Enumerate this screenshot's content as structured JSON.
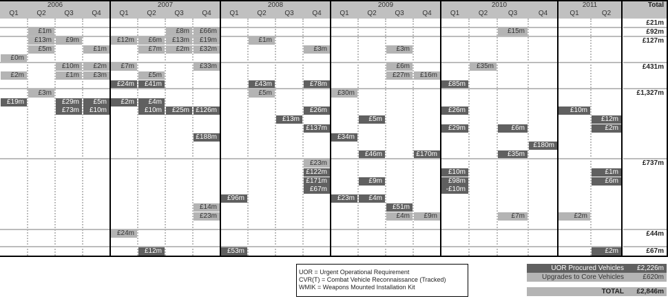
{
  "chart_data": {
    "type": "table",
    "total_header": "Total",
    "years": [
      {
        "year": "2006",
        "quarters": [
          "Q1",
          "Q2",
          "Q3",
          "Q4"
        ]
      },
      {
        "year": "2007",
        "quarters": [
          "Q1",
          "Q2",
          "Q3",
          "Q4"
        ]
      },
      {
        "year": "2008",
        "quarters": [
          "Q1",
          "Q2",
          "Q3",
          "Q4"
        ]
      },
      {
        "year": "2009",
        "quarters": [
          "Q1",
          "Q2",
          "Q3",
          "Q4"
        ]
      },
      {
        "year": "2010",
        "quarters": [
          "Q1",
          "Q2",
          "Q3",
          "Q4"
        ]
      },
      {
        "year": "2011",
        "quarters": [
          "Q1",
          "Q2"
        ]
      }
    ],
    "colors": {
      "header": "#c0c0c0",
      "uor": "#606060",
      "upgrade": "#b4b4b4",
      "separator": "#bbbbbb"
    },
    "rows": [
      {
        "total": "£21m",
        "lines": 1,
        "cells": []
      },
      {
        "total": "£92m",
        "lines": 1,
        "cells": [
          {
            "q": "2006 Q2",
            "line": 0,
            "value": "£1m",
            "tone": "light"
          },
          {
            "q": "2007 Q3",
            "line": 0,
            "value": "£8m",
            "tone": "light"
          },
          {
            "q": "2007 Q4",
            "line": 0,
            "value": "£66m",
            "tone": "light"
          },
          {
            "q": "2010 Q3",
            "line": 0,
            "value": "£15m",
            "tone": "light"
          }
        ]
      },
      {
        "total": "£127m",
        "lines": 3,
        "cells": [
          {
            "q": "2006 Q2",
            "line": 0,
            "value": "£13m",
            "tone": "light"
          },
          {
            "q": "2006 Q3",
            "line": 0,
            "value": "£9m",
            "tone": "light"
          },
          {
            "q": "2007 Q1",
            "line": 0,
            "value": "£12m",
            "tone": "light"
          },
          {
            "q": "2007 Q2",
            "line": 0,
            "value": "£6m",
            "tone": "light"
          },
          {
            "q": "2007 Q3",
            "line": 0,
            "value": "£13m",
            "tone": "light"
          },
          {
            "q": "2007 Q4",
            "line": 0,
            "value": "£19m",
            "tone": "light"
          },
          {
            "q": "2008 Q2",
            "line": 0,
            "value": "£1m",
            "tone": "light"
          },
          {
            "q": "2006 Q2",
            "line": 1,
            "value": "£5m",
            "tone": "light"
          },
          {
            "q": "2006 Q4",
            "line": 1,
            "value": "£1m",
            "tone": "light"
          },
          {
            "q": "2007 Q2",
            "line": 1,
            "value": "£7m",
            "tone": "light"
          },
          {
            "q": "2007 Q3",
            "line": 1,
            "value": "£2m",
            "tone": "light"
          },
          {
            "q": "2007 Q4",
            "line": 1,
            "value": "£32m",
            "tone": "light"
          },
          {
            "q": "2008 Q4",
            "line": 1,
            "value": "£3m",
            "tone": "light"
          },
          {
            "q": "2009 Q3",
            "line": 1,
            "value": "£3m",
            "tone": "light"
          },
          {
            "q": "2006 Q1",
            "line": 2,
            "value": "£0m",
            "tone": "light"
          }
        ]
      },
      {
        "total": "£431m",
        "lines": 3,
        "cells": [
          {
            "q": "2006 Q3",
            "line": 0,
            "value": "£10m",
            "tone": "light"
          },
          {
            "q": "2006 Q4",
            "line": 0,
            "value": "£2m",
            "tone": "light"
          },
          {
            "q": "2007 Q1",
            "line": 0,
            "value": "£7m",
            "tone": "light"
          },
          {
            "q": "2007 Q4",
            "line": 0,
            "value": "£33m",
            "tone": "light"
          },
          {
            "q": "2009 Q3",
            "line": 0,
            "value": "£6m",
            "tone": "light"
          },
          {
            "q": "2010 Q2",
            "line": 0,
            "value": "£35m",
            "tone": "light"
          },
          {
            "q": "2006 Q1",
            "line": 1,
            "value": "£2m",
            "tone": "light"
          },
          {
            "q": "2006 Q3",
            "line": 1,
            "value": "£1m",
            "tone": "light"
          },
          {
            "q": "2006 Q4",
            "line": 1,
            "value": "£3m",
            "tone": "light"
          },
          {
            "q": "2007 Q2",
            "line": 1,
            "value": "£5m",
            "tone": "light"
          },
          {
            "q": "2009 Q3",
            "line": 1,
            "value": "£27m",
            "tone": "light"
          },
          {
            "q": "2009 Q4",
            "line": 1,
            "value": "£16m",
            "tone": "light"
          },
          {
            "q": "2007 Q1",
            "line": 2,
            "value": "£24m",
            "tone": "dark"
          },
          {
            "q": "2007 Q2",
            "line": 2,
            "value": "£41m",
            "tone": "dark"
          },
          {
            "q": "2008 Q2",
            "line": 2,
            "value": "£43m",
            "tone": "dark"
          },
          {
            "q": "2008 Q4",
            "line": 2,
            "value": "£78m",
            "tone": "dark"
          },
          {
            "q": "2010 Q1",
            "line": 2,
            "value": "£85m",
            "tone": "dark"
          }
        ]
      },
      {
        "total": "£1,327m",
        "lines": 8,
        "cells": [
          {
            "q": "2006 Q2",
            "line": 0,
            "value": "£3m",
            "tone": "light"
          },
          {
            "q": "2008 Q2",
            "line": 0,
            "value": "£5m",
            "tone": "light"
          },
          {
            "q": "2009 Q1",
            "line": 0,
            "value": "£30m",
            "tone": "light"
          },
          {
            "q": "2006 Q1",
            "line": 1,
            "value": "£19m",
            "tone": "dark"
          },
          {
            "q": "2006 Q3",
            "line": 1,
            "value": "£29m",
            "tone": "dark"
          },
          {
            "q": "2006 Q4",
            "line": 1,
            "value": "£5m",
            "tone": "dark"
          },
          {
            "q": "2007 Q1",
            "line": 1,
            "value": "£2m",
            "tone": "dark"
          },
          {
            "q": "2007 Q2",
            "line": 1,
            "value": "£4m",
            "tone": "dark"
          },
          {
            "q": "2006 Q3",
            "line": 2,
            "value": "£73m",
            "tone": "dark"
          },
          {
            "q": "2006 Q4",
            "line": 2,
            "value": "£10m",
            "tone": "dark"
          },
          {
            "q": "2007 Q2",
            "line": 2,
            "value": "£10m",
            "tone": "dark"
          },
          {
            "q": "2007 Q3",
            "line": 2,
            "value": "£25m",
            "tone": "dark"
          },
          {
            "q": "2007 Q4",
            "line": 2,
            "value": "£126m",
            "tone": "dark"
          },
          {
            "q": "2008 Q4",
            "line": 2,
            "value": "£26m",
            "tone": "dark"
          },
          {
            "q": "2010 Q1",
            "line": 2,
            "value": "£26m",
            "tone": "dark"
          },
          {
            "q": "2011 Q1",
            "line": 2,
            "value": "£10m",
            "tone": "dark"
          },
          {
            "q": "2008 Q3",
            "line": 3,
            "value": "£13m",
            "tone": "dark"
          },
          {
            "q": "2009 Q2",
            "line": 3,
            "value": "£5m",
            "tone": "dark"
          },
          {
            "q": "2011 Q2",
            "line": 3,
            "value": "£12m",
            "tone": "dark"
          },
          {
            "q": "2008 Q4",
            "line": 4,
            "value": "£137m",
            "tone": "dark"
          },
          {
            "q": "2010 Q1",
            "line": 4,
            "value": "£29m",
            "tone": "dark"
          },
          {
            "q": "2010 Q3",
            "line": 4,
            "value": "£6m",
            "tone": "dark"
          },
          {
            "q": "2011 Q2",
            "line": 4,
            "value": "£2m",
            "tone": "dark"
          },
          {
            "q": "2007 Q4",
            "line": 5,
            "value": "£188m",
            "tone": "dark"
          },
          {
            "q": "2009 Q1",
            "line": 5,
            "value": "£34m",
            "tone": "dark"
          },
          {
            "q": "2010 Q4",
            "line": 6,
            "value": "£180m",
            "tone": "dark"
          },
          {
            "q": "2009 Q2",
            "line": 7,
            "value": "£46m",
            "tone": "dark"
          },
          {
            "q": "2009 Q4",
            "line": 7,
            "value": "£170m",
            "tone": "dark"
          },
          {
            "q": "2010 Q3",
            "line": 7,
            "value": "£35m",
            "tone": "dark"
          }
        ]
      },
      {
        "total": "£737m",
        "lines": 8,
        "cells": [
          {
            "q": "2008 Q4",
            "line": 0,
            "value": "£23m",
            "tone": "light"
          },
          {
            "q": "2008 Q4",
            "line": 1,
            "value": "£122m",
            "tone": "dark"
          },
          {
            "q": "2010 Q1",
            "line": 1,
            "value": "£10m",
            "tone": "dark"
          },
          {
            "q": "2011 Q2",
            "line": 1,
            "value": "£1m",
            "tone": "dark"
          },
          {
            "q": "2008 Q4",
            "line": 2,
            "value": "£171m",
            "tone": "dark"
          },
          {
            "q": "2009 Q2",
            "line": 2,
            "value": "£9m",
            "tone": "dark"
          },
          {
            "q": "2010 Q1",
            "line": 2,
            "value": "£98m",
            "tone": "dark"
          },
          {
            "q": "2011 Q2",
            "line": 2,
            "value": "£6m",
            "tone": "dark"
          },
          {
            "q": "2008 Q4",
            "line": 3,
            "value": "£67m",
            "tone": "dark"
          },
          {
            "q": "2010 Q1",
            "line": 3,
            "value": "-£10m",
            "tone": "dark"
          },
          {
            "q": "2008 Q1",
            "line": 4,
            "value": "£96m",
            "tone": "dark"
          },
          {
            "q": "2009 Q1",
            "line": 4,
            "value": "£23m",
            "tone": "dark"
          },
          {
            "q": "2009 Q2",
            "line": 4,
            "value": "£4m",
            "tone": "dark"
          },
          {
            "q": "2007 Q4",
            "line": 5,
            "value": "£14m",
            "tone": "light"
          },
          {
            "q": "2009 Q3",
            "line": 5,
            "value": "£51m",
            "tone": "dark"
          },
          {
            "q": "2007 Q4",
            "line": 6,
            "value": "£23m",
            "tone": "light"
          },
          {
            "q": "2009 Q3",
            "line": 6,
            "value": "£4m",
            "tone": "light"
          },
          {
            "q": "2009 Q4",
            "line": 6,
            "value": "£9m",
            "tone": "light"
          },
          {
            "q": "2010 Q3",
            "line": 6,
            "value": "£7m",
            "tone": "light"
          },
          {
            "q": "2011 Q1",
            "line": 6,
            "value": "£2m",
            "tone": "light"
          }
        ]
      },
      {
        "total": "£44m",
        "lines": 2,
        "cells": [
          {
            "q": "2007 Q1",
            "line": 0,
            "value": "£24m",
            "tone": "light"
          }
        ]
      },
      {
        "total": "£67m",
        "lines": 1,
        "cells": [
          {
            "q": "2007 Q2",
            "line": 0,
            "value": "£12m",
            "tone": "dark"
          },
          {
            "q": "2008 Q1",
            "line": 0,
            "value": "£53m",
            "tone": "dark"
          },
          {
            "q": "2011 Q2",
            "line": 0,
            "value": "£2m",
            "tone": "dark"
          }
        ]
      }
    ]
  },
  "legend": {
    "lines": [
      "UOR = Urgent Operational Requirement",
      "CVR(T) = Combat Vehicle Reconnaissance (Tracked)",
      "WMIK = Weapons Mounted Installation Kit"
    ]
  },
  "summary": {
    "uor_label": "UOR Procured Vehicles",
    "uor_value": "£2,226m",
    "upgrade_label": "Upgrades to Core Vehicles",
    "upgrade_value": "£620m",
    "total_label": "TOTAL",
    "total_value": "£2,846m"
  }
}
